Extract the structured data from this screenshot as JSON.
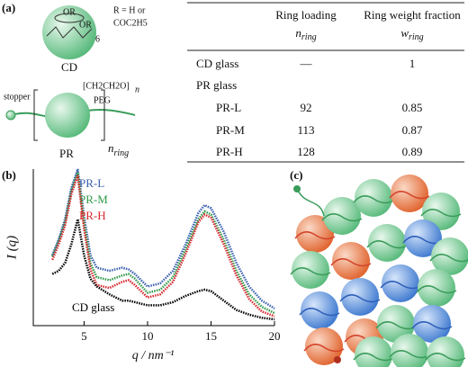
{
  "panels": {
    "a": "(a)",
    "b": "(b)",
    "c": "(c)"
  },
  "schematic": {
    "or_top": "OR",
    "or_side": "OR",
    "repeat": "6",
    "r_group_1": "R = H or",
    "r_group_2": "COC2H5",
    "cd_label": "CD",
    "stopper": "stopper",
    "peg_formula": "[CH2CH2O]",
    "peg_n": "n",
    "peg": "PEG",
    "pr_label": "PR",
    "n_symbol": "n",
    "n_sub": "ring"
  },
  "table": {
    "header": [
      {
        "text": "Ring loading",
        "symbol": "n",
        "sub": "ring"
      },
      {
        "text": "Ring weight fraction",
        "symbol": "w",
        "sub": "ring"
      }
    ],
    "rows": [
      [
        "CD glass",
        "—",
        1
      ],
      [
        "PR glass"
      ],
      [
        "PR-L",
        92,
        0.85
      ],
      [
        "PR-M",
        113,
        0.87
      ],
      [
        "PR-H",
        128,
        0.89
      ]
    ]
  },
  "chart_data": {
    "type": "line",
    "x_label": "q / nm⁻¹",
    "y_label": "I (q)",
    "x": [
      2.5,
      3,
      3.5,
      4,
      4.5,
      5,
      5.5,
      6,
      7,
      8,
      8.5,
      9,
      10,
      11,
      12,
      13,
      14,
      14.5,
      15,
      16,
      17,
      18,
      19,
      20
    ],
    "xlim": [
      1,
      20
    ],
    "xticks": [
      5,
      10,
      15,
      20
    ],
    "ylim": [
      0,
      100
    ],
    "series": [
      {
        "name": "PR-L",
        "color": "#3a5fb0",
        "values": [
          45,
          55,
          68,
          88,
          100,
          70,
          45,
          37,
          35,
          37,
          36,
          33,
          25,
          27,
          35,
          52,
          72,
          77,
          75,
          60,
          40,
          25,
          16,
          11
        ]
      },
      {
        "name": "PR-M",
        "color": "#2f9a4a",
        "values": [
          44,
          54,
          66,
          86,
          98,
          66,
          40,
          31,
          29,
          32,
          33,
          30,
          21,
          23,
          31,
          49,
          68,
          73,
          71,
          55,
          35,
          20,
          12,
          8
        ]
      },
      {
        "name": "PR-H",
        "color": "#d8262c",
        "values": [
          42,
          52,
          64,
          84,
          96,
          62,
          36,
          26,
          24,
          28,
          29,
          26,
          18,
          20,
          28,
          46,
          66,
          71,
          69,
          52,
          32,
          17,
          9,
          6
        ]
      },
      {
        "name": "CD glass",
        "color": "#000000",
        "values": [
          33,
          35,
          40,
          52,
          68,
          45,
          30,
          25,
          20,
          16,
          16,
          15,
          13,
          13,
          15,
          19,
          22,
          23,
          22,
          16,
          10,
          7,
          5,
          4
        ]
      }
    ]
  }
}
